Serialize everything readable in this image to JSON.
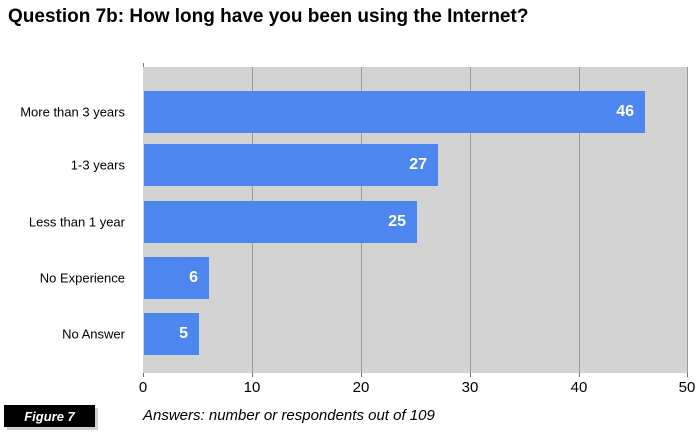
{
  "title": "Question 7b: How long have you been using the Internet?",
  "figure_label": "Figure 7",
  "caption": "Answers: number or respondents out of 109",
  "colors": {
    "bar": "#4d86ee",
    "plot_bg": "#d3d3d3",
    "gridline": "#9b9b9b",
    "axis": "#7d7d76",
    "value_label": "#ffffff",
    "figure_box_bg": "#000000",
    "figure_box_text": "#ffffff"
  },
  "chart_data": {
    "type": "bar",
    "orientation": "horizontal",
    "title": "Question 7b: How long have you been using the Internet?",
    "categories": [
      "More than 3 years",
      "1-3 years",
      "Less than 1 year",
      "No Experience",
      "No Answer"
    ],
    "values": [
      46,
      27,
      25,
      6,
      5
    ],
    "xlabel": "",
    "ylabel": "",
    "xlim": [
      0,
      50
    ],
    "xticks": [
      0,
      10,
      20,
      30,
      40,
      50
    ],
    "grid": true,
    "legend": false,
    "value_labels": true,
    "caption": "Answers: number or respondents out of 109"
  }
}
